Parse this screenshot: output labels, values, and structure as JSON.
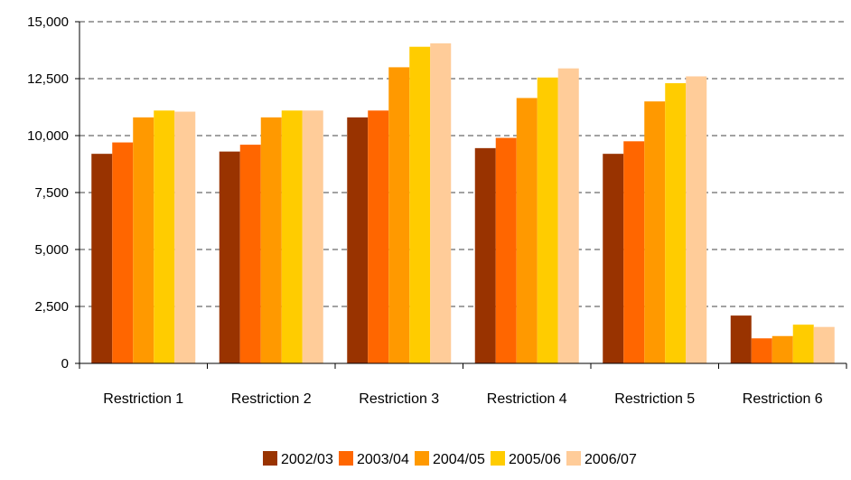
{
  "chart_data": {
    "type": "bar",
    "categories": [
      "Restriction 1",
      "Restriction 2",
      "Restriction 3",
      "Restriction 4",
      "Restriction 5",
      "Restriction 6"
    ],
    "series": [
      {
        "name": "2002/03",
        "color": "#993300",
        "values": [
          9200,
          9300,
          10800,
          9450,
          9200,
          2100
        ]
      },
      {
        "name": "2003/04",
        "color": "#FF6600",
        "values": [
          9700,
          9600,
          11100,
          9900,
          9750,
          1100
        ]
      },
      {
        "name": "2004/05",
        "color": "#FF9900",
        "values": [
          10800,
          10800,
          13000,
          11650,
          11500,
          1200
        ]
      },
      {
        "name": "2005/06",
        "color": "#FFCC00",
        "values": [
          11100,
          11100,
          13900,
          12550,
          12300,
          1700
        ]
      },
      {
        "name": "2006/07",
        "color": "#FFCC99",
        "values": [
          11050,
          11100,
          14050,
          12950,
          12600,
          1600
        ]
      }
    ],
    "y_ticks": [
      "0",
      "2,500",
      "5,000",
      "7,500",
      "10,000",
      "12,500",
      "15,000"
    ],
    "ylim": [
      0,
      15000
    ],
    "grid": "horizontal dashed",
    "legend": "bottom-center"
  }
}
